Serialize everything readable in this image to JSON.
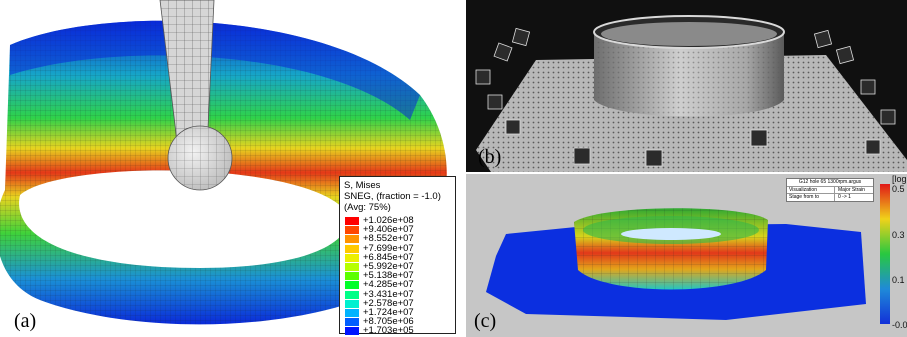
{
  "panel_a": {
    "label": "(a)",
    "legend": {
      "line1": "S, Mises",
      "line2": "SNEG, (fraction = -1.0)",
      "line3": "(Avg: 75%)",
      "levels": [
        {
          "value": "+1.026e+08",
          "color": "#ff0000"
        },
        {
          "value": "+9.406e+07",
          "color": "#ff4800"
        },
        {
          "value": "+8.552e+07",
          "color": "#ff9400"
        },
        {
          "value": "+7.699e+07",
          "color": "#ffc900"
        },
        {
          "value": "+6.845e+07",
          "color": "#ecef00"
        },
        {
          "value": "+5.992e+07",
          "color": "#b6ff00"
        },
        {
          "value": "+5.138e+07",
          "color": "#5cff00"
        },
        {
          "value": "+4.285e+07",
          "color": "#00ff2a"
        },
        {
          "value": "+3.431e+07",
          "color": "#00ff86"
        },
        {
          "value": "+2.578e+07",
          "color": "#00f0d0"
        },
        {
          "value": "+1.724e+07",
          "color": "#00b4ff"
        },
        {
          "value": "+8.705e+06",
          "color": "#005eff"
        },
        {
          "value": "+1.703e+05",
          "color": "#0014ff"
        }
      ]
    }
  },
  "panel_b": {
    "label": "(b)"
  },
  "panel_c": {
    "label": "(c)",
    "info": {
      "title": "G12 hole 65 1300rpm.argus",
      "rows": [
        {
          "key": "Visualization",
          "value": "Major Strain"
        },
        {
          "key": "Stage from to",
          "value": "0 -> 1"
        }
      ]
    },
    "colorbar": {
      "unit": "[log",
      "ticks": [
        "0.5",
        "0.3",
        "0.1",
        "-0.0"
      ]
    }
  }
}
